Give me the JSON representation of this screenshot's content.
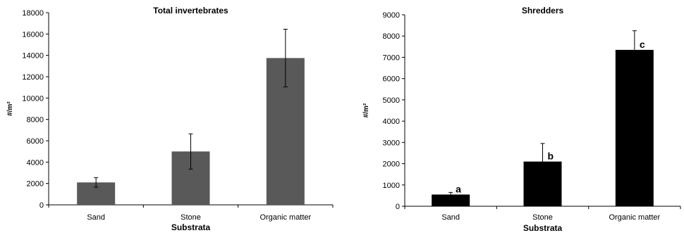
{
  "chart_data": [
    {
      "type": "bar",
      "title": "Total invertebrates",
      "xlabel": "Substrata",
      "ylabel": "#/m²",
      "categories": [
        "Sand",
        "Stone",
        "Organic matter"
      ],
      "values": [
        2100,
        5000,
        13750
      ],
      "error": [
        450,
        1650,
        2700
      ],
      "ylim": [
        0,
        18000
      ],
      "yticks": [
        0,
        2000,
        4000,
        6000,
        8000,
        10000,
        12000,
        14000,
        16000,
        18000
      ],
      "bar_color": "#595959",
      "error_style": "both"
    },
    {
      "type": "bar",
      "title": "Shredders",
      "xlabel": "Substrata",
      "ylabel": "#/m²",
      "categories": [
        "Sand",
        "Stone",
        "Organic matter"
      ],
      "values": [
        550,
        2100,
        7350
      ],
      "error": [
        100,
        850,
        900
      ],
      "ylim": [
        0,
        9000
      ],
      "yticks": [
        0,
        1000,
        2000,
        3000,
        4000,
        5000,
        6000,
        7000,
        8000,
        9000
      ],
      "annotations": [
        "a",
        "b",
        "c"
      ],
      "bar_color": "#000000",
      "error_style": "upper"
    }
  ]
}
